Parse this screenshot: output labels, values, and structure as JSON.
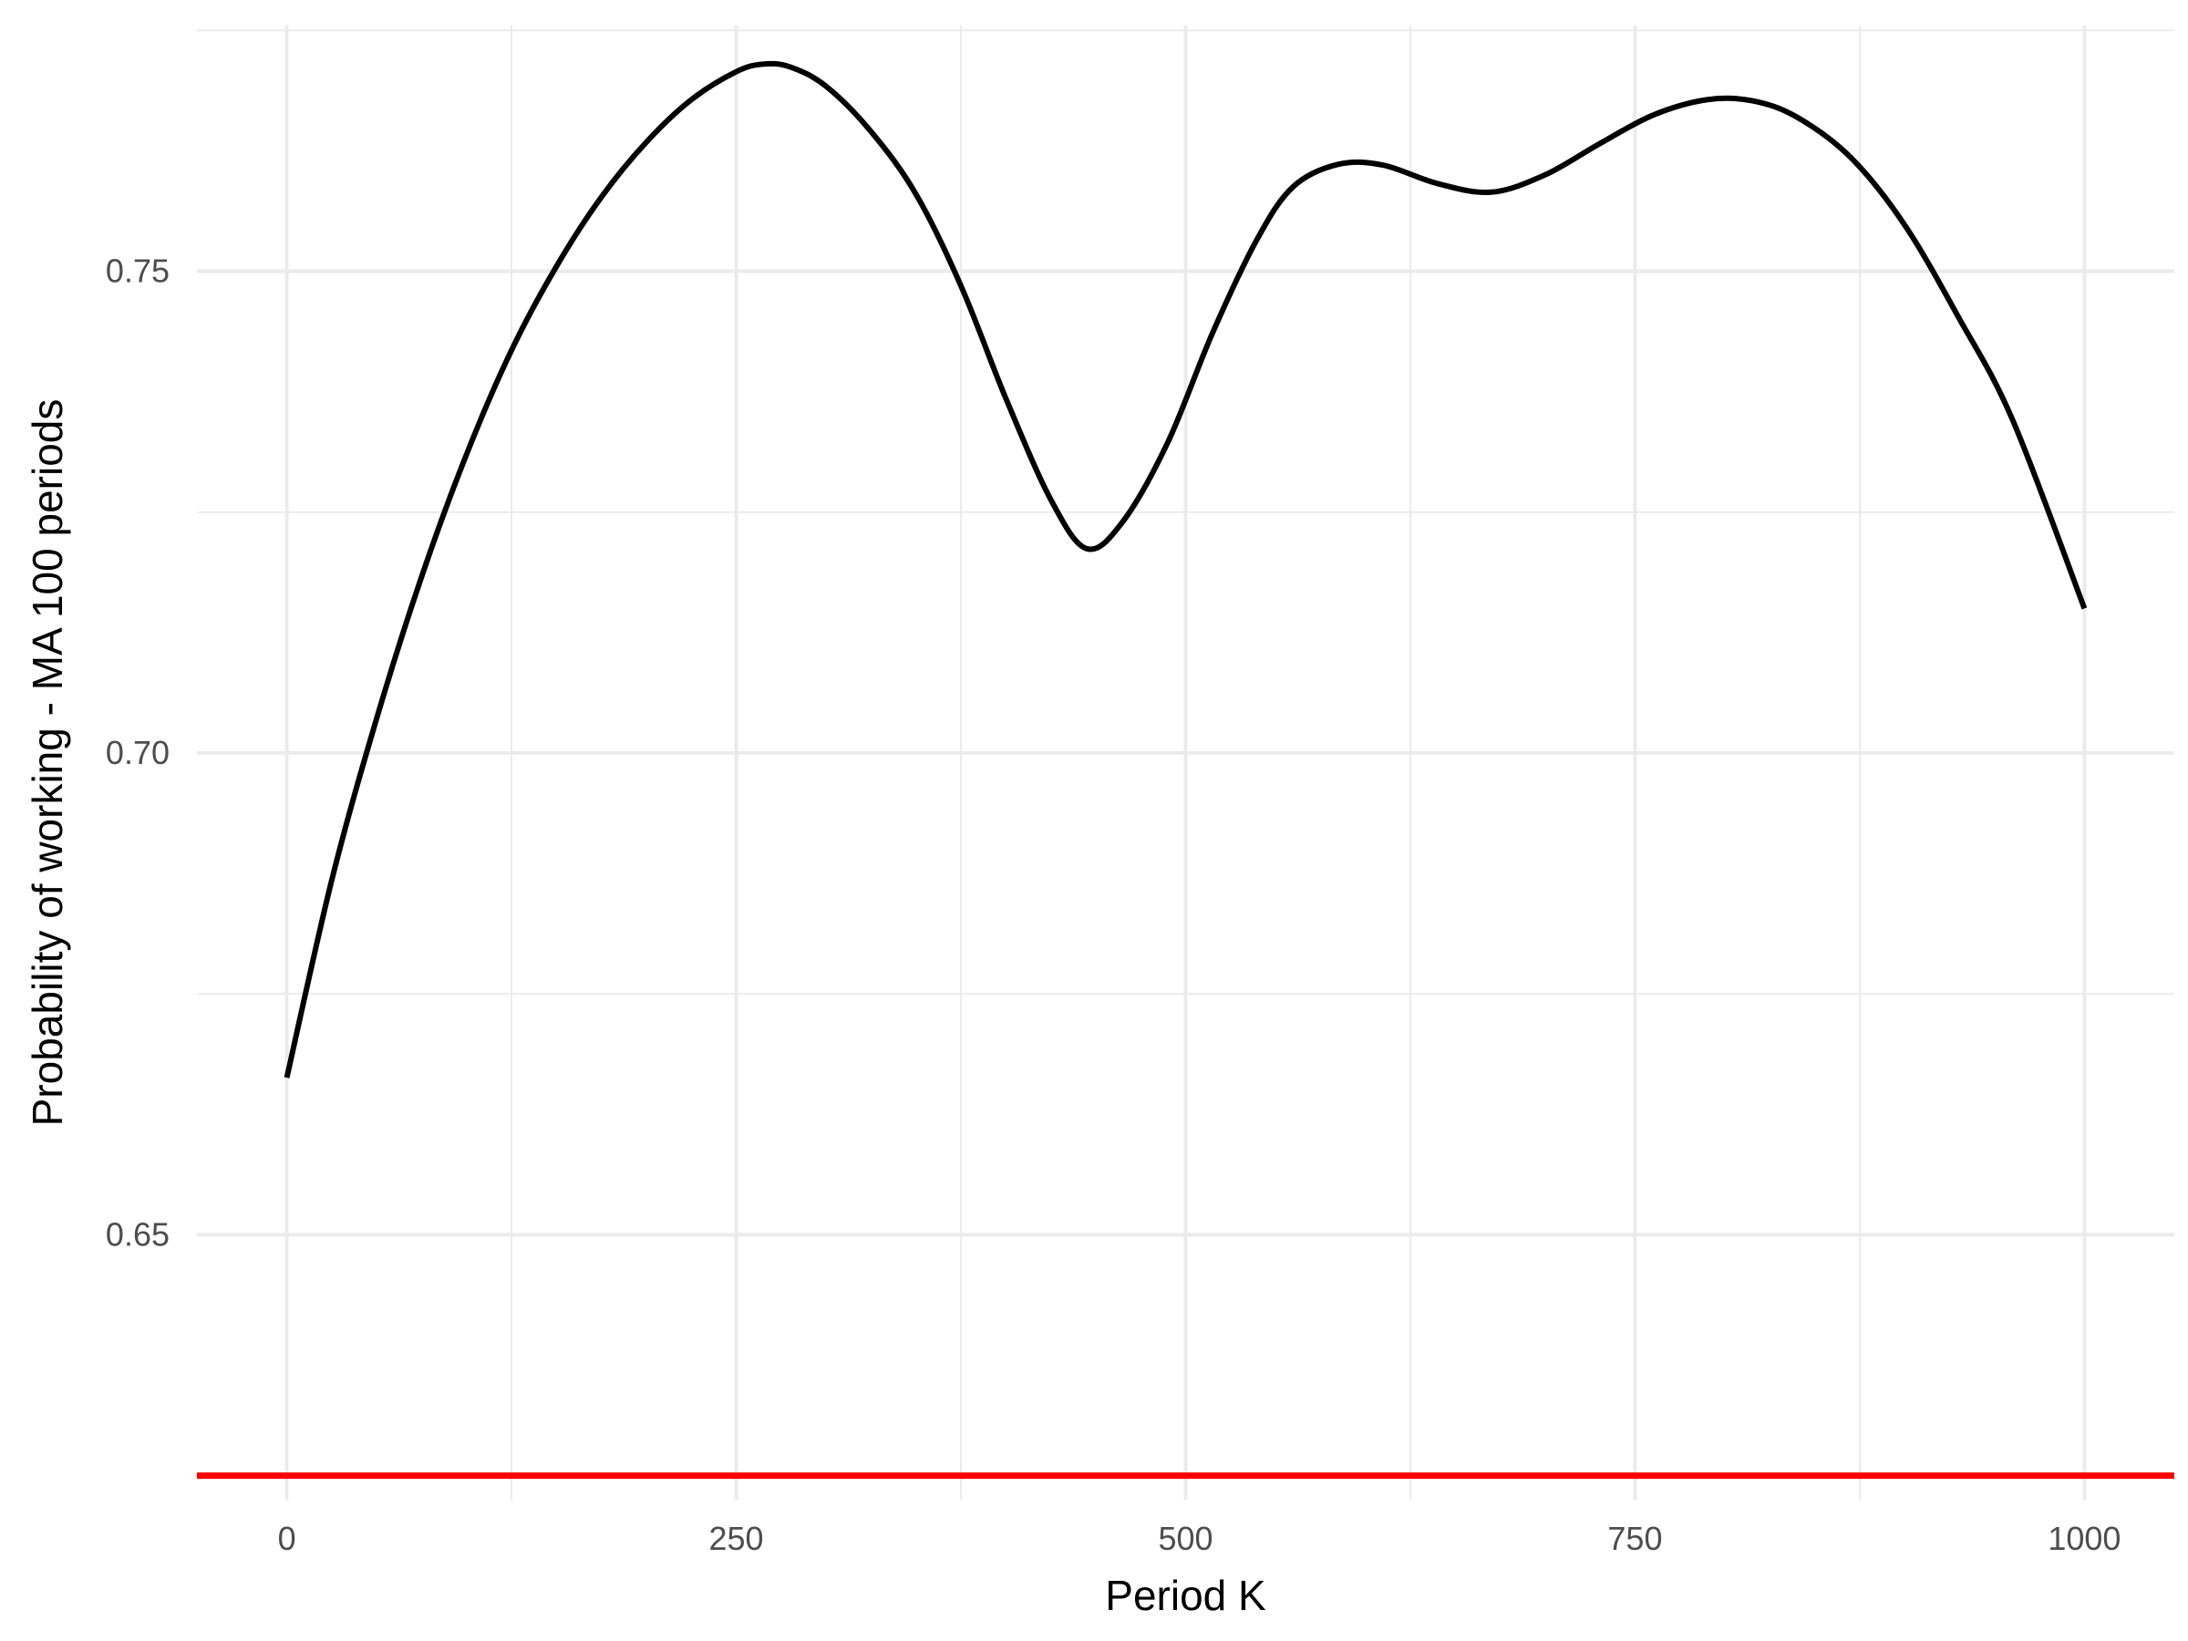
{
  "chart_data": {
    "type": "line",
    "title": "",
    "xlabel": "Period K",
    "ylabel": "Probability of working - MA 100 periods",
    "xlim": [
      -50,
      1050
    ],
    "ylim": [
      0.6225,
      0.7755
    ],
    "x_ticks": [
      0,
      250,
      500,
      750,
      1000
    ],
    "x_tick_labels": [
      "0",
      "250",
      "500",
      "750",
      "1000"
    ],
    "x_minor_ticks": [
      125,
      375,
      625,
      875
    ],
    "y_ticks": [
      0.65,
      0.7,
      0.75
    ],
    "y_tick_labels": [
      "0.65",
      "0.70",
      "0.75"
    ],
    "y_minor_ticks": [
      0.675,
      0.725,
      0.775
    ],
    "grid": true,
    "legend": "none",
    "series": [
      {
        "color": "#000000",
        "x": [
          0,
          25,
          50,
          75,
          100,
          125,
          150,
          175,
          200,
          225,
          250,
          265,
          280,
          300,
          325,
          350,
          375,
          400,
          425,
          445,
          465,
          490,
          515,
          540,
          560,
          585,
          610,
          640,
          670,
          700,
          730,
          760,
          790,
          815,
          840,
          870,
          900,
          930,
          960,
          1000
        ],
        "y": [
          0.6663,
          0.6868,
          0.7036,
          0.7183,
          0.731,
          0.7418,
          0.7505,
          0.7577,
          0.7634,
          0.7678,
          0.7707,
          0.7715,
          0.7712,
          0.7692,
          0.7645,
          0.758,
          0.7485,
          0.7368,
          0.7263,
          0.7212,
          0.724,
          0.7322,
          0.7436,
          0.7534,
          0.7588,
          0.7611,
          0.761,
          0.7591,
          0.7582,
          0.76,
          0.7632,
          0.7662,
          0.7678,
          0.7677,
          0.766,
          0.7618,
          0.7548,
          0.7452,
          0.7346,
          0.715
        ]
      }
    ],
    "reference_lines": [
      {
        "orientation": "horizontal",
        "y": 0.625,
        "color": "#ff0000"
      }
    ]
  }
}
